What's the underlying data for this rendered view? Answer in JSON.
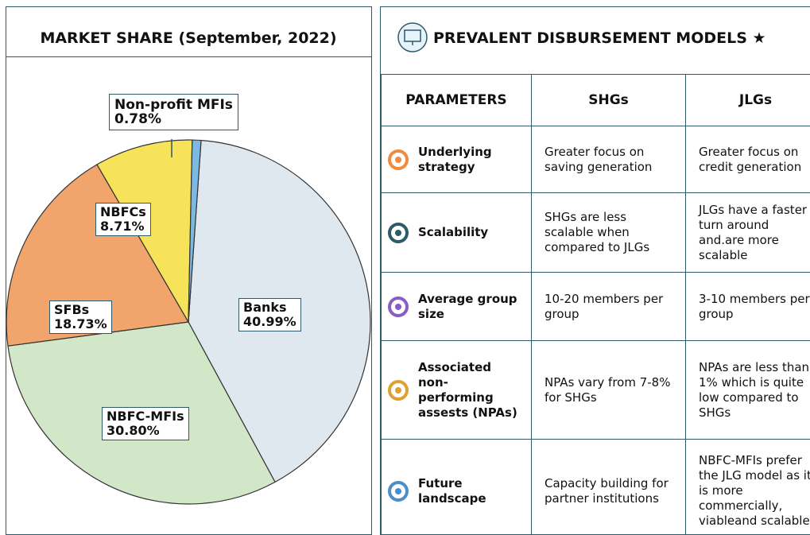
{
  "chart_data": {
    "type": "pie",
    "title": "MARKET SHARE (September, 2022)",
    "categories": [
      "Banks",
      "NBFC-MFIs",
      "SFBs",
      "NBFCs",
      "Non-profit MFIs"
    ],
    "values": [
      40.99,
      30.8,
      18.73,
      8.71,
      0.78
    ],
    "value_labels": [
      "40.99%",
      "30.80%",
      "18.73%",
      "8.71%",
      "0.78%"
    ],
    "colors": [
      "#dfe8ee",
      "#d2e6c8",
      "#f1a46c",
      "#f6e35a",
      "#7bb9e2"
    ]
  },
  "table": {
    "title": "PREVALENT DISBURSEMENT MODELS ★",
    "header": [
      "PARAMETERS",
      "SHGs",
      "JLGs"
    ],
    "rows": [
      [
        "Underlying strategy",
        "Greater focus on saving generation",
        "Greater focus on credit generation"
      ],
      [
        "Scalability",
        "SHGs are less scalable when compared to JLGs",
        "JLGs have a faster turn around and.are more scalable"
      ],
      [
        "Average group size",
        "10-20 members per group",
        "3-10 members per group"
      ],
      [
        "Associated non-performing assests (NPAs)",
        "NPAs vary from 7-8% for SHGs",
        "NPAs are less than 1% which is quite low compared to SHGs"
      ],
      [
        "Future landscape",
        "Capacity building for partner institutions",
        "NBFC-MFIs prefer the JLG model as it is more commercially, viableand scalable"
      ]
    ]
  }
}
